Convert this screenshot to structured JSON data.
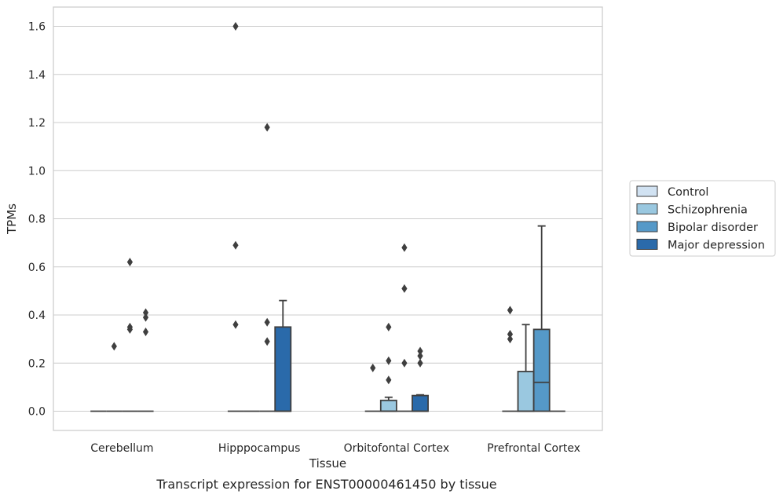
{
  "chart_data": {
    "type": "box",
    "title": "",
    "caption": "Transcript expression for ENST00000461450 by tissue",
    "xlabel": "Tissue",
    "ylabel": "TPMs",
    "ylim": [
      -0.08,
      1.68
    ],
    "yticks": [
      0.0,
      0.2,
      0.4,
      0.6,
      0.8,
      1.0,
      1.2,
      1.4,
      1.6
    ],
    "grid": "horizontal",
    "legend_position": "right",
    "categories": [
      "Cerebellum",
      "Hipppocampus",
      "Orbitofontal Cortex",
      "Prefrontal Cortex"
    ],
    "series": [
      {
        "name": "Control",
        "color": "#d1e2f2",
        "boxes": [
          {
            "q1": 0,
            "median": 0,
            "q3": 0,
            "whislo": 0,
            "whishi": 0,
            "fliers": []
          },
          {
            "q1": 0,
            "median": 0,
            "q3": 0,
            "whislo": 0,
            "whishi": 0,
            "fliers": [
              1.6,
              0.69,
              0.36
            ]
          },
          {
            "q1": 0,
            "median": 0,
            "q3": 0,
            "whislo": 0,
            "whishi": 0,
            "fliers": [
              0.18
            ]
          },
          {
            "q1": 0,
            "median": 0,
            "q3": 0,
            "whislo": 0,
            "whishi": 0,
            "fliers": [
              0.42,
              0.32,
              0.3
            ]
          }
        ]
      },
      {
        "name": "Schizophrenia",
        "color": "#9ac8e0",
        "boxes": [
          {
            "q1": 0,
            "median": 0,
            "q3": 0,
            "whislo": 0,
            "whishi": 0,
            "fliers": [
              0.27
            ]
          },
          {
            "q1": 0,
            "median": 0,
            "q3": 0,
            "whislo": 0,
            "whishi": 0,
            "fliers": []
          },
          {
            "q1": 0,
            "median": 0,
            "q3": 0.045,
            "whislo": 0,
            "whishi": 0.058,
            "fliers": [
              0.35,
              0.21,
              0.13
            ]
          },
          {
            "q1": 0,
            "median": 0,
            "q3": 0.165,
            "whislo": 0,
            "whishi": 0.36,
            "fliers": []
          }
        ]
      },
      {
        "name": "Bipolar disorder",
        "color": "#5599c8",
        "boxes": [
          {
            "q1": 0,
            "median": 0,
            "q3": 0,
            "whislo": 0,
            "whishi": 0,
            "fliers": [
              0.62,
              0.35,
              0.34
            ]
          },
          {
            "q1": 0,
            "median": 0,
            "q3": 0,
            "whislo": 0,
            "whishi": 0,
            "fliers": [
              0.37,
              1.18,
              0.29
            ]
          },
          {
            "q1": 0,
            "median": 0,
            "q3": 0,
            "whislo": 0,
            "whishi": 0,
            "fliers": [
              0.68,
              0.51,
              0.2
            ]
          },
          {
            "q1": 0,
            "median": 0.12,
            "q3": 0.34,
            "whislo": 0,
            "whishi": 0.77,
            "fliers": []
          }
        ]
      },
      {
        "name": "Major depression",
        "color": "#2a6aaa",
        "boxes": [
          {
            "q1": 0,
            "median": 0,
            "q3": 0,
            "whislo": 0,
            "whishi": 0,
            "fliers": [
              0.41,
              0.39,
              0.33
            ]
          },
          {
            "q1": 0,
            "median": 0,
            "q3": 0.35,
            "whislo": 0,
            "whishi": 0.46,
            "fliers": []
          },
          {
            "q1": 0,
            "median": 0,
            "q3": 0.065,
            "whislo": 0,
            "whishi": 0.068,
            "fliers": [
              0.25,
              0.23,
              0.2
            ]
          },
          {
            "q1": 0,
            "median": 0,
            "q3": 0,
            "whislo": 0,
            "whishi": 0,
            "fliers": []
          }
        ]
      }
    ]
  }
}
